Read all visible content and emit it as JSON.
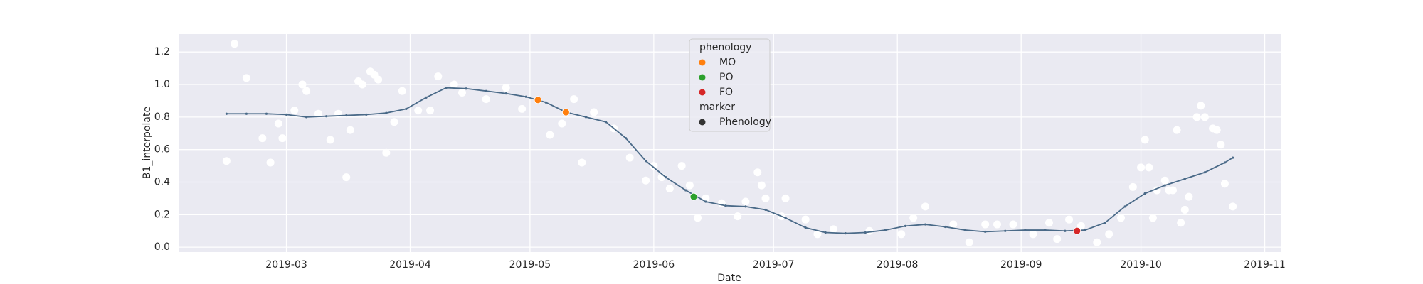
{
  "chart_data": {
    "type": "scatter",
    "x_label": "Date",
    "y_label": "B1_interpolate",
    "xlim": [
      "2019-02-02",
      "2019-11-05"
    ],
    "ylim": [
      -0.03,
      1.31
    ],
    "xticks": [
      {
        "value": "2019-03-01",
        "label": "2019-03"
      },
      {
        "value": "2019-04-01",
        "label": "2019-04"
      },
      {
        "value": "2019-05-01",
        "label": "2019-05"
      },
      {
        "value": "2019-06-01",
        "label": "2019-06"
      },
      {
        "value": "2019-07-01",
        "label": "2019-07"
      },
      {
        "value": "2019-08-01",
        "label": "2019-08"
      },
      {
        "value": "2019-09-01",
        "label": "2019-09"
      },
      {
        "value": "2019-10-01",
        "label": "2019-10"
      },
      {
        "value": "2019-11-01",
        "label": "2019-11"
      }
    ],
    "yticks": [
      {
        "value": 0,
        "label": "0.0"
      },
      0.2,
      0.4,
      0.6,
      0.8,
      {
        "value": 1,
        "label": "1.0"
      },
      1.2
    ],
    "grid": true,
    "background": "#eaeaf2",
    "scatter": {
      "color": "#ffffff",
      "x": [
        "2019-02-14",
        "2019-02-16",
        "2019-02-19",
        "2019-02-23",
        "2019-02-25",
        "2019-02-27",
        "2019-02-28",
        "2019-03-03",
        "2019-03-05",
        "2019-03-06",
        "2019-03-09",
        "2019-03-12",
        "2019-03-14",
        "2019-03-16",
        "2019-03-17",
        "2019-03-19",
        "2019-03-20",
        "2019-03-22",
        "2019-03-23",
        "2019-03-24",
        "2019-03-26",
        "2019-03-28",
        "2019-03-30",
        "2019-04-03",
        "2019-04-06",
        "2019-04-08",
        "2019-04-12",
        "2019-04-14",
        "2019-04-20",
        "2019-04-25",
        "2019-04-29",
        "2019-05-06",
        "2019-05-09",
        "2019-05-12",
        "2019-05-14",
        "2019-05-17",
        "2019-05-22",
        "2019-05-26",
        "2019-05-30",
        "2019-06-01",
        "2019-06-03",
        "2019-06-05",
        "2019-06-08",
        "2019-06-10",
        "2019-06-12",
        "2019-06-14",
        "2019-06-18",
        "2019-06-22",
        "2019-06-24",
        "2019-06-27",
        "2019-06-28",
        "2019-06-29",
        "2019-07-03",
        "2019-07-04",
        "2019-07-09",
        "2019-07-12",
        "2019-07-16",
        "2019-07-25",
        "2019-08-02",
        "2019-08-05",
        "2019-08-08",
        "2019-08-15",
        "2019-08-19",
        "2019-08-23",
        "2019-08-26",
        "2019-08-30",
        "2019-09-04",
        "2019-09-08",
        "2019-09-10",
        "2019-09-13",
        "2019-09-16",
        "2019-09-20",
        "2019-09-23",
        "2019-09-26",
        "2019-09-29",
        "2019-10-01",
        "2019-10-02",
        "2019-10-03",
        "2019-10-04",
        "2019-10-05",
        "2019-10-07",
        "2019-10-08",
        "2019-10-09",
        "2019-10-10",
        "2019-10-11",
        "2019-10-12",
        "2019-10-13",
        "2019-10-15",
        "2019-10-16",
        "2019-10-17",
        "2019-10-19",
        "2019-10-20",
        "2019-10-21",
        "2019-10-22",
        "2019-10-24"
      ],
      "values": [
        0.53,
        1.25,
        1.04,
        0.67,
        0.52,
        0.76,
        0.67,
        0.84,
        1.0,
        0.96,
        0.82,
        0.66,
        0.82,
        0.43,
        0.72,
        1.02,
        1.0,
        1.08,
        1.06,
        1.03,
        0.58,
        0.77,
        0.96,
        0.84,
        0.84,
        1.05,
        1.0,
        0.95,
        0.91,
        0.98,
        0.85,
        0.69,
        0.76,
        0.91,
        0.52,
        0.83,
        0.73,
        0.55,
        0.41,
        0.5,
        0.43,
        0.36,
        0.5,
        0.38,
        0.18,
        0.3,
        0.27,
        0.19,
        0.28,
        0.46,
        0.38,
        0.3,
        0.19,
        0.3,
        0.17,
        0.08,
        0.11,
        0.1,
        0.08,
        0.18,
        0.25,
        0.14,
        0.03,
        0.14,
        0.14,
        0.14,
        0.08,
        0.15,
        0.05,
        0.17,
        0.13,
        0.03,
        0.08,
        0.18,
        0.37,
        0.49,
        0.66,
        0.49,
        0.18,
        0.35,
        0.41,
        0.35,
        0.35,
        0.72,
        0.15,
        0.23,
        0.31,
        0.8,
        0.87,
        0.8,
        0.73,
        0.72,
        0.63,
        0.39,
        0.25
      ]
    },
    "line": {
      "color": "#4a6a88",
      "x": [
        "2019-02-14",
        "2019-02-19",
        "2019-02-24",
        "2019-03-01",
        "2019-03-06",
        "2019-03-11",
        "2019-03-16",
        "2019-03-21",
        "2019-03-26",
        "2019-03-31",
        "2019-04-05",
        "2019-04-10",
        "2019-04-15",
        "2019-04-20",
        "2019-04-25",
        "2019-04-30",
        "2019-05-05",
        "2019-05-10",
        "2019-05-15",
        "2019-05-20",
        "2019-05-25",
        "2019-05-30",
        "2019-06-04",
        "2019-06-09",
        "2019-06-14",
        "2019-06-19",
        "2019-06-24",
        "2019-06-29",
        "2019-07-04",
        "2019-07-09",
        "2019-07-14",
        "2019-07-19",
        "2019-07-24",
        "2019-07-29",
        "2019-08-03",
        "2019-08-08",
        "2019-08-13",
        "2019-08-18",
        "2019-08-23",
        "2019-08-28",
        "2019-09-02",
        "2019-09-07",
        "2019-09-12",
        "2019-09-17",
        "2019-09-22",
        "2019-09-27",
        "2019-10-02",
        "2019-10-07",
        "2019-10-12",
        "2019-10-17",
        "2019-10-22",
        "2019-10-24"
      ],
      "values": [
        0.82,
        0.82,
        0.82,
        0.815,
        0.8,
        0.805,
        0.81,
        0.815,
        0.825,
        0.85,
        0.92,
        0.98,
        0.975,
        0.96,
        0.945,
        0.925,
        0.89,
        0.83,
        0.8,
        0.77,
        0.67,
        0.53,
        0.43,
        0.35,
        0.28,
        0.255,
        0.25,
        0.23,
        0.18,
        0.12,
        0.09,
        0.085,
        0.09,
        0.105,
        0.13,
        0.14,
        0.125,
        0.105,
        0.095,
        0.1,
        0.105,
        0.105,
        0.1,
        0.105,
        0.15,
        0.25,
        0.33,
        0.38,
        0.42,
        0.46,
        0.52,
        0.55
      ]
    },
    "legend_title": "phenology",
    "legend": "upper center",
    "series": [
      {
        "name": "MO",
        "color": "#ff7f0e",
        "x": [
          "2019-05-03",
          "2019-05-10"
        ],
        "values": [
          0.905,
          0.83
        ]
      },
      {
        "name": "PO",
        "color": "#2ca02c",
        "x": [
          "2019-06-11"
        ],
        "values": [
          0.31
        ]
      },
      {
        "name": "FO",
        "color": "#d62728",
        "x": [
          "2019-09-15"
        ],
        "values": [
          0.1
        ]
      }
    ],
    "marker_legend": {
      "title": "marker",
      "name": "Phenology",
      "color": "#333333"
    }
  }
}
